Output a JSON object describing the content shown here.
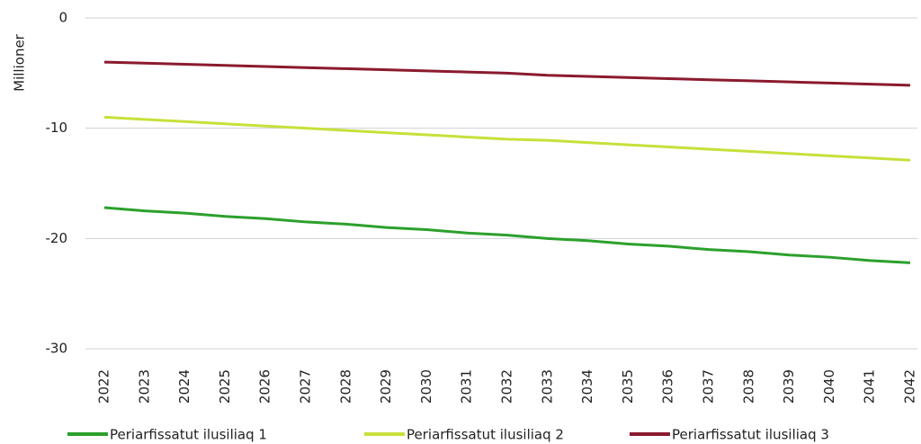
{
  "chart_data": {
    "type": "line",
    "y_label": "Millioner",
    "categories": [
      "2022",
      "2023",
      "2024",
      "2025",
      "2026",
      "2027",
      "2028",
      "2029",
      "2030",
      "2031",
      "2032",
      "2033",
      "2034",
      "2035",
      "2036",
      "2037",
      "2038",
      "2039",
      "2040",
      "2041",
      "2042"
    ],
    "series": [
      {
        "name": "Periarfissatut ilusiliaq 1",
        "color": "#2ca02c",
        "values": [
          -17.2,
          -17.5,
          -17.7,
          -18.0,
          -18.2,
          -18.5,
          -18.7,
          -19.0,
          -19.2,
          -19.5,
          -19.7,
          -20.0,
          -20.2,
          -20.5,
          -20.7,
          -21.0,
          -21.2,
          -21.5,
          -21.7,
          -22.0,
          -22.2
        ]
      },
      {
        "name": "Periarfissatut ilusiliaq 2",
        "color": "#c8e03a",
        "values": [
          -9.0,
          -9.2,
          -9.4,
          -9.6,
          -9.8,
          -10.0,
          -10.2,
          -10.4,
          -10.6,
          -10.8,
          -11.0,
          -11.1,
          -11.3,
          -11.5,
          -11.7,
          -11.9,
          -12.1,
          -12.3,
          -12.5,
          -12.7,
          -12.9
        ]
      },
      {
        "name": "Periarfissatut ilusiliaq 3",
        "color": "#8b1a2e",
        "values": [
          -4.0,
          -4.1,
          -4.2,
          -4.3,
          -4.4,
          -4.5,
          -4.6,
          -4.7,
          -4.8,
          -4.9,
          -5.0,
          -5.2,
          -5.3,
          -5.4,
          -5.5,
          -5.6,
          -5.7,
          -5.8,
          -5.9,
          -6.0,
          -6.1
        ]
      }
    ],
    "ylim": [
      -30,
      0
    ],
    "yticks": [
      0,
      -10,
      -20,
      -30
    ],
    "grid": true
  }
}
